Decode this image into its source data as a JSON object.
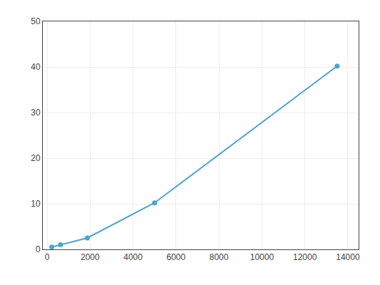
{
  "chart_data": {
    "type": "line",
    "x": [
      219,
      625,
      1875,
      5000,
      13500
    ],
    "values": [
      0.5,
      1.0,
      2.5,
      10.2,
      40.2
    ],
    "color": "#4da6c8",
    "marker": "circle",
    "line_style": "solid",
    "xlim": [
      -200,
      14500
    ],
    "ylim": [
      0,
      50
    ],
    "xticks": [
      0,
      2000,
      4000,
      6000,
      8000,
      10000,
      12000,
      14000
    ],
    "yticks": [
      0,
      10,
      20,
      30,
      40,
      50
    ],
    "grid": true
  }
}
